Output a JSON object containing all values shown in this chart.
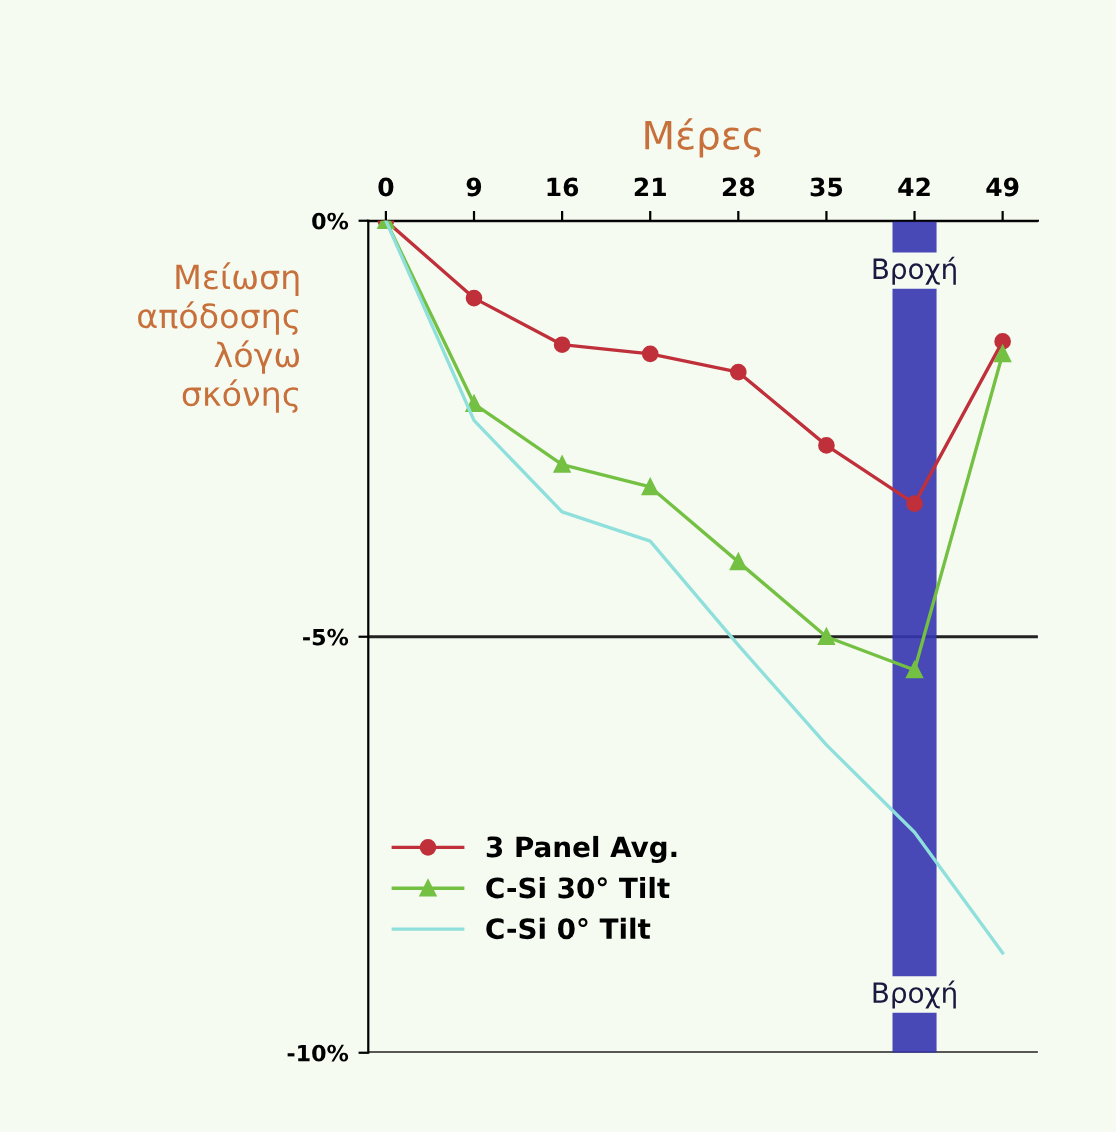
{
  "chart_data": {
    "type": "line",
    "xlabel": "Μέρες",
    "ylabel": "Μείωση\nαπόδοσης\nλόγω\nσκόνης",
    "categories": [
      "0",
      "9",
      "16",
      "21",
      "28",
      "35",
      "42",
      "49"
    ],
    "series": [
      {
        "name": "3 Panel Avg.",
        "color": "#c0303a",
        "marker": "circle",
        "values": [
          0,
          -0.93,
          -1.49,
          -1.6,
          -1.82,
          -2.7,
          -3.4,
          -1.45
        ]
      },
      {
        "name": "C-Si 30° Tilt",
        "color": "#74c043",
        "marker": "triangle",
        "values": [
          0,
          -2.2,
          -2.93,
          -3.2,
          -4.1,
          -5.0,
          -5.4,
          -1.6
        ]
      },
      {
        "name": "C-Si 0° Tilt",
        "color": "#8fe0dc",
        "marker": "none",
        "values": [
          0,
          -2.4,
          -3.5,
          -3.85,
          -5.1,
          -6.3,
          -7.35,
          -8.8
        ]
      }
    ],
    "ylim": [
      -10,
      0
    ],
    "yticks": [
      {
        "value": 0,
        "label": "0%"
      },
      {
        "value": -5,
        "label": "-5%"
      },
      {
        "value": -10,
        "label": "-10%"
      }
    ],
    "bands": [
      {
        "axis": "x",
        "from": "42",
        "to": "42",
        "label": "Βροχή",
        "color": "#3535b0"
      }
    ],
    "annotations": [
      "Βροχή"
    ],
    "grid": "y",
    "legend": "bottom left"
  }
}
